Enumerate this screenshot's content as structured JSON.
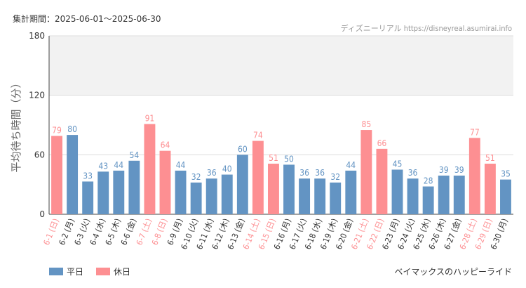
{
  "header": {
    "period": "集計期間：2025-06-01～2025-06-30",
    "source": "ディズニーリアル https://disneyreal.asumirai.info"
  },
  "footer": {
    "ride": "ベイマックスのハッピーライド"
  },
  "colors": {
    "weekday": "#6394c3",
    "holiday": "#fd8f92",
    "band": "#f2f2f2",
    "grid": "#dddddd",
    "axis": "#444444"
  },
  "chart_data": {
    "type": "bar",
    "ylabel": "平均待ち時間（分）",
    "ylim": [
      0,
      180
    ],
    "yticks": [
      0,
      60,
      120,
      180
    ],
    "shaded_band": [
      120,
      180
    ],
    "legend": [
      {
        "key": "weekday",
        "label": "平日"
      },
      {
        "key": "holiday",
        "label": "休日"
      }
    ],
    "categories": [
      "6-1 (日)",
      "6-2 (月)",
      "6-3 (火)",
      "6-4 (水)",
      "6-5 (木)",
      "6-6 (金)",
      "6-7 (土)",
      "6-8 (日)",
      "6-9 (月)",
      "6-10 (火)",
      "6-11 (水)",
      "6-12 (木)",
      "6-13 (金)",
      "6-14 (土)",
      "6-15 (日)",
      "6-16 (月)",
      "6-17 (火)",
      "6-18 (水)",
      "6-19 (木)",
      "6-20 (金)",
      "6-21 (土)",
      "6-22 (日)",
      "6-23 (月)",
      "6-24 (火)",
      "6-25 (水)",
      "6-26 (木)",
      "6-27 (金)",
      "6-28 (土)",
      "6-29 (日)",
      "6-30 (月)"
    ],
    "values": [
      79,
      80,
      33,
      43,
      44,
      54,
      91,
      64,
      44,
      32,
      36,
      40,
      60,
      74,
      51,
      50,
      36,
      36,
      32,
      44,
      85,
      66,
      45,
      36,
      28,
      39,
      39,
      77,
      51,
      35
    ],
    "day_type": [
      "holiday",
      "weekday",
      "weekday",
      "weekday",
      "weekday",
      "weekday",
      "holiday",
      "holiday",
      "weekday",
      "weekday",
      "weekday",
      "weekday",
      "weekday",
      "holiday",
      "holiday",
      "weekday",
      "weekday",
      "weekday",
      "weekday",
      "weekday",
      "holiday",
      "holiday",
      "weekday",
      "weekday",
      "weekday",
      "weekday",
      "weekday",
      "holiday",
      "holiday",
      "weekday"
    ]
  }
}
